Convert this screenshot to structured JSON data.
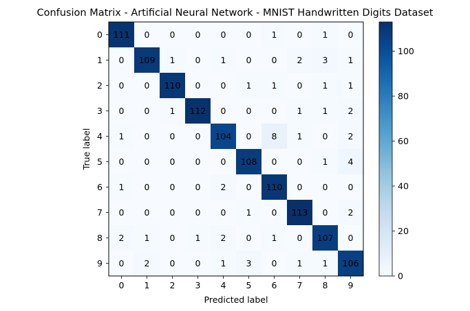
{
  "chart_data": {
    "type": "heatmap",
    "title": "Confusion Matrix - Artificial Neural Network - MNIST Handwritten Digits Dataset",
    "xlabel": "Predicted label",
    "ylabel": "True label",
    "x_categories": [
      "0",
      "1",
      "2",
      "3",
      "4",
      "5",
      "6",
      "7",
      "8",
      "9"
    ],
    "y_categories": [
      "0",
      "1",
      "2",
      "3",
      "4",
      "5",
      "6",
      "7",
      "8",
      "9"
    ],
    "values": [
      [
        111,
        0,
        0,
        0,
        0,
        0,
        1,
        0,
        1,
        0
      ],
      [
        0,
        109,
        1,
        0,
        1,
        0,
        0,
        2,
        3,
        1
      ],
      [
        0,
        0,
        110,
        0,
        0,
        1,
        1,
        0,
        1,
        1
      ],
      [
        0,
        0,
        1,
        112,
        0,
        0,
        0,
        1,
        1,
        2
      ],
      [
        1,
        0,
        0,
        0,
        104,
        0,
        8,
        1,
        0,
        2
      ],
      [
        0,
        0,
        0,
        0,
        0,
        108,
        0,
        0,
        1,
        4
      ],
      [
        1,
        0,
        0,
        0,
        2,
        0,
        110,
        0,
        0,
        0
      ],
      [
        0,
        0,
        0,
        0,
        0,
        1,
        0,
        113,
        0,
        2
      ],
      [
        2,
        1,
        0,
        1,
        2,
        0,
        1,
        0,
        107,
        0
      ],
      [
        0,
        2,
        0,
        0,
        1,
        3,
        0,
        1,
        1,
        106
      ]
    ],
    "colormap": "Blues",
    "colorbar": {
      "min": 0,
      "max": 113,
      "ticks": [
        0,
        20,
        40,
        60,
        80,
        100
      ]
    },
    "grid": false,
    "legend": "none"
  }
}
